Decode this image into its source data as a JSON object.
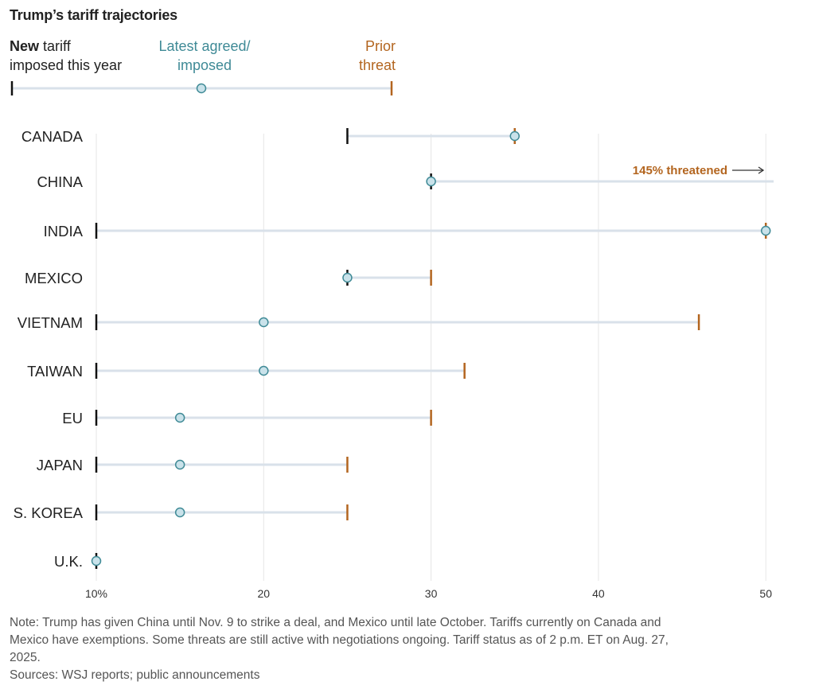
{
  "title": "Trump’s tariff trajectories",
  "legend": {
    "new_bold": "New",
    "new_rest_line1": " tariff",
    "new_line2": "imposed this year",
    "latest_line1": "Latest agreed/",
    "latest_line2": "imposed",
    "prior_line1": "Prior",
    "prior_line2": "threat"
  },
  "colors": {
    "new": "#111111",
    "latest_fill": "#c9e2ea",
    "latest_stroke": "#3f8a96",
    "prior": "#b3651f",
    "bar": "#d9e1ea",
    "grid": "#e6e6e6",
    "text": "#222222",
    "note": "#555555"
  },
  "chart_data": {
    "type": "dumbbell",
    "title": "Trump’s tariff trajectories",
    "xlabel": "",
    "ylabel": "",
    "xlim": [
      10,
      50
    ],
    "x_ticks": [
      10,
      20,
      30,
      40,
      50
    ],
    "x_tick_labels": [
      "10%",
      "20",
      "30",
      "40",
      "50"
    ],
    "grid": true,
    "series_names": [
      "New tariff imposed this year",
      "Latest agreed/imposed",
      "Prior threat"
    ],
    "categories": [
      "CANADA",
      "CHINA",
      "INDIA",
      "MEXICO",
      "VIETNAM",
      "TAIWAN",
      "EU",
      "JAPAN",
      "S. KOREA",
      "U.K."
    ],
    "new": [
      25,
      30,
      10,
      25,
      10,
      10,
      10,
      10,
      10,
      10
    ],
    "latest": [
      35,
      30,
      50,
      25,
      20,
      20,
      15,
      15,
      15,
      10
    ],
    "prior": [
      35,
      145,
      50,
      30,
      46,
      32,
      30,
      25,
      25,
      null
    ],
    "annotations": [
      {
        "category": "CHINA",
        "text": "145% threatened",
        "arrow": "right"
      }
    ]
  },
  "note": "Note: Trump has given China until Nov. 9 to strike a deal, and Mexico until late October. Tariffs currently on Canada and Mexico have exemptions. Some threats are still active with negotiations ongoing. Tariff status as of 2 p.m. ET on Aug. 27, 2025.",
  "sources": "Sources: WSJ reports; public announcements"
}
